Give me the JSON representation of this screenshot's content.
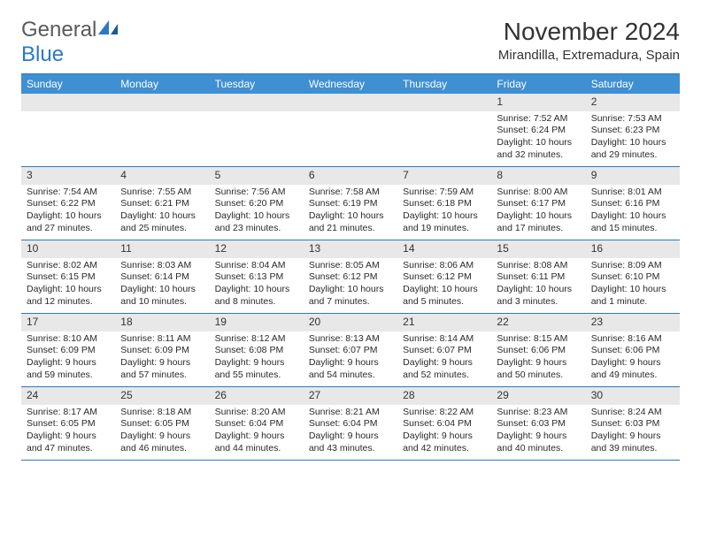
{
  "logo": {
    "text1": "General",
    "text2": "Blue"
  },
  "title": "November 2024",
  "location": "Mirandilla, Extremadura, Spain",
  "colors": {
    "header_bg": "#3f8fd3",
    "border": "#2b79c2",
    "daynum_bg": "#e8e8e8",
    "text": "#2a2a2a",
    "logo_gray": "#5a5a5a",
    "logo_blue": "#2b79c2"
  },
  "day_names": [
    "Sunday",
    "Monday",
    "Tuesday",
    "Wednesday",
    "Thursday",
    "Friday",
    "Saturday"
  ],
  "weeks": [
    [
      {
        "n": "",
        "sr": "",
        "ss": "",
        "dl": ""
      },
      {
        "n": "",
        "sr": "",
        "ss": "",
        "dl": ""
      },
      {
        "n": "",
        "sr": "",
        "ss": "",
        "dl": ""
      },
      {
        "n": "",
        "sr": "",
        "ss": "",
        "dl": ""
      },
      {
        "n": "",
        "sr": "",
        "ss": "",
        "dl": ""
      },
      {
        "n": "1",
        "sr": "Sunrise: 7:52 AM",
        "ss": "Sunset: 6:24 PM",
        "dl": "Daylight: 10 hours and 32 minutes."
      },
      {
        "n": "2",
        "sr": "Sunrise: 7:53 AM",
        "ss": "Sunset: 6:23 PM",
        "dl": "Daylight: 10 hours and 29 minutes."
      }
    ],
    [
      {
        "n": "3",
        "sr": "Sunrise: 7:54 AM",
        "ss": "Sunset: 6:22 PM",
        "dl": "Daylight: 10 hours and 27 minutes."
      },
      {
        "n": "4",
        "sr": "Sunrise: 7:55 AM",
        "ss": "Sunset: 6:21 PM",
        "dl": "Daylight: 10 hours and 25 minutes."
      },
      {
        "n": "5",
        "sr": "Sunrise: 7:56 AM",
        "ss": "Sunset: 6:20 PM",
        "dl": "Daylight: 10 hours and 23 minutes."
      },
      {
        "n": "6",
        "sr": "Sunrise: 7:58 AM",
        "ss": "Sunset: 6:19 PM",
        "dl": "Daylight: 10 hours and 21 minutes."
      },
      {
        "n": "7",
        "sr": "Sunrise: 7:59 AM",
        "ss": "Sunset: 6:18 PM",
        "dl": "Daylight: 10 hours and 19 minutes."
      },
      {
        "n": "8",
        "sr": "Sunrise: 8:00 AM",
        "ss": "Sunset: 6:17 PM",
        "dl": "Daylight: 10 hours and 17 minutes."
      },
      {
        "n": "9",
        "sr": "Sunrise: 8:01 AM",
        "ss": "Sunset: 6:16 PM",
        "dl": "Daylight: 10 hours and 15 minutes."
      }
    ],
    [
      {
        "n": "10",
        "sr": "Sunrise: 8:02 AM",
        "ss": "Sunset: 6:15 PM",
        "dl": "Daylight: 10 hours and 12 minutes."
      },
      {
        "n": "11",
        "sr": "Sunrise: 8:03 AM",
        "ss": "Sunset: 6:14 PM",
        "dl": "Daylight: 10 hours and 10 minutes."
      },
      {
        "n": "12",
        "sr": "Sunrise: 8:04 AM",
        "ss": "Sunset: 6:13 PM",
        "dl": "Daylight: 10 hours and 8 minutes."
      },
      {
        "n": "13",
        "sr": "Sunrise: 8:05 AM",
        "ss": "Sunset: 6:12 PM",
        "dl": "Daylight: 10 hours and 7 minutes."
      },
      {
        "n": "14",
        "sr": "Sunrise: 8:06 AM",
        "ss": "Sunset: 6:12 PM",
        "dl": "Daylight: 10 hours and 5 minutes."
      },
      {
        "n": "15",
        "sr": "Sunrise: 8:08 AM",
        "ss": "Sunset: 6:11 PM",
        "dl": "Daylight: 10 hours and 3 minutes."
      },
      {
        "n": "16",
        "sr": "Sunrise: 8:09 AM",
        "ss": "Sunset: 6:10 PM",
        "dl": "Daylight: 10 hours and 1 minute."
      }
    ],
    [
      {
        "n": "17",
        "sr": "Sunrise: 8:10 AM",
        "ss": "Sunset: 6:09 PM",
        "dl": "Daylight: 9 hours and 59 minutes."
      },
      {
        "n": "18",
        "sr": "Sunrise: 8:11 AM",
        "ss": "Sunset: 6:09 PM",
        "dl": "Daylight: 9 hours and 57 minutes."
      },
      {
        "n": "19",
        "sr": "Sunrise: 8:12 AM",
        "ss": "Sunset: 6:08 PM",
        "dl": "Daylight: 9 hours and 55 minutes."
      },
      {
        "n": "20",
        "sr": "Sunrise: 8:13 AM",
        "ss": "Sunset: 6:07 PM",
        "dl": "Daylight: 9 hours and 54 minutes."
      },
      {
        "n": "21",
        "sr": "Sunrise: 8:14 AM",
        "ss": "Sunset: 6:07 PM",
        "dl": "Daylight: 9 hours and 52 minutes."
      },
      {
        "n": "22",
        "sr": "Sunrise: 8:15 AM",
        "ss": "Sunset: 6:06 PM",
        "dl": "Daylight: 9 hours and 50 minutes."
      },
      {
        "n": "23",
        "sr": "Sunrise: 8:16 AM",
        "ss": "Sunset: 6:06 PM",
        "dl": "Daylight: 9 hours and 49 minutes."
      }
    ],
    [
      {
        "n": "24",
        "sr": "Sunrise: 8:17 AM",
        "ss": "Sunset: 6:05 PM",
        "dl": "Daylight: 9 hours and 47 minutes."
      },
      {
        "n": "25",
        "sr": "Sunrise: 8:18 AM",
        "ss": "Sunset: 6:05 PM",
        "dl": "Daylight: 9 hours and 46 minutes."
      },
      {
        "n": "26",
        "sr": "Sunrise: 8:20 AM",
        "ss": "Sunset: 6:04 PM",
        "dl": "Daylight: 9 hours and 44 minutes."
      },
      {
        "n": "27",
        "sr": "Sunrise: 8:21 AM",
        "ss": "Sunset: 6:04 PM",
        "dl": "Daylight: 9 hours and 43 minutes."
      },
      {
        "n": "28",
        "sr": "Sunrise: 8:22 AM",
        "ss": "Sunset: 6:04 PM",
        "dl": "Daylight: 9 hours and 42 minutes."
      },
      {
        "n": "29",
        "sr": "Sunrise: 8:23 AM",
        "ss": "Sunset: 6:03 PM",
        "dl": "Daylight: 9 hours and 40 minutes."
      },
      {
        "n": "30",
        "sr": "Sunrise: 8:24 AM",
        "ss": "Sunset: 6:03 PM",
        "dl": "Daylight: 9 hours and 39 minutes."
      }
    ]
  ]
}
